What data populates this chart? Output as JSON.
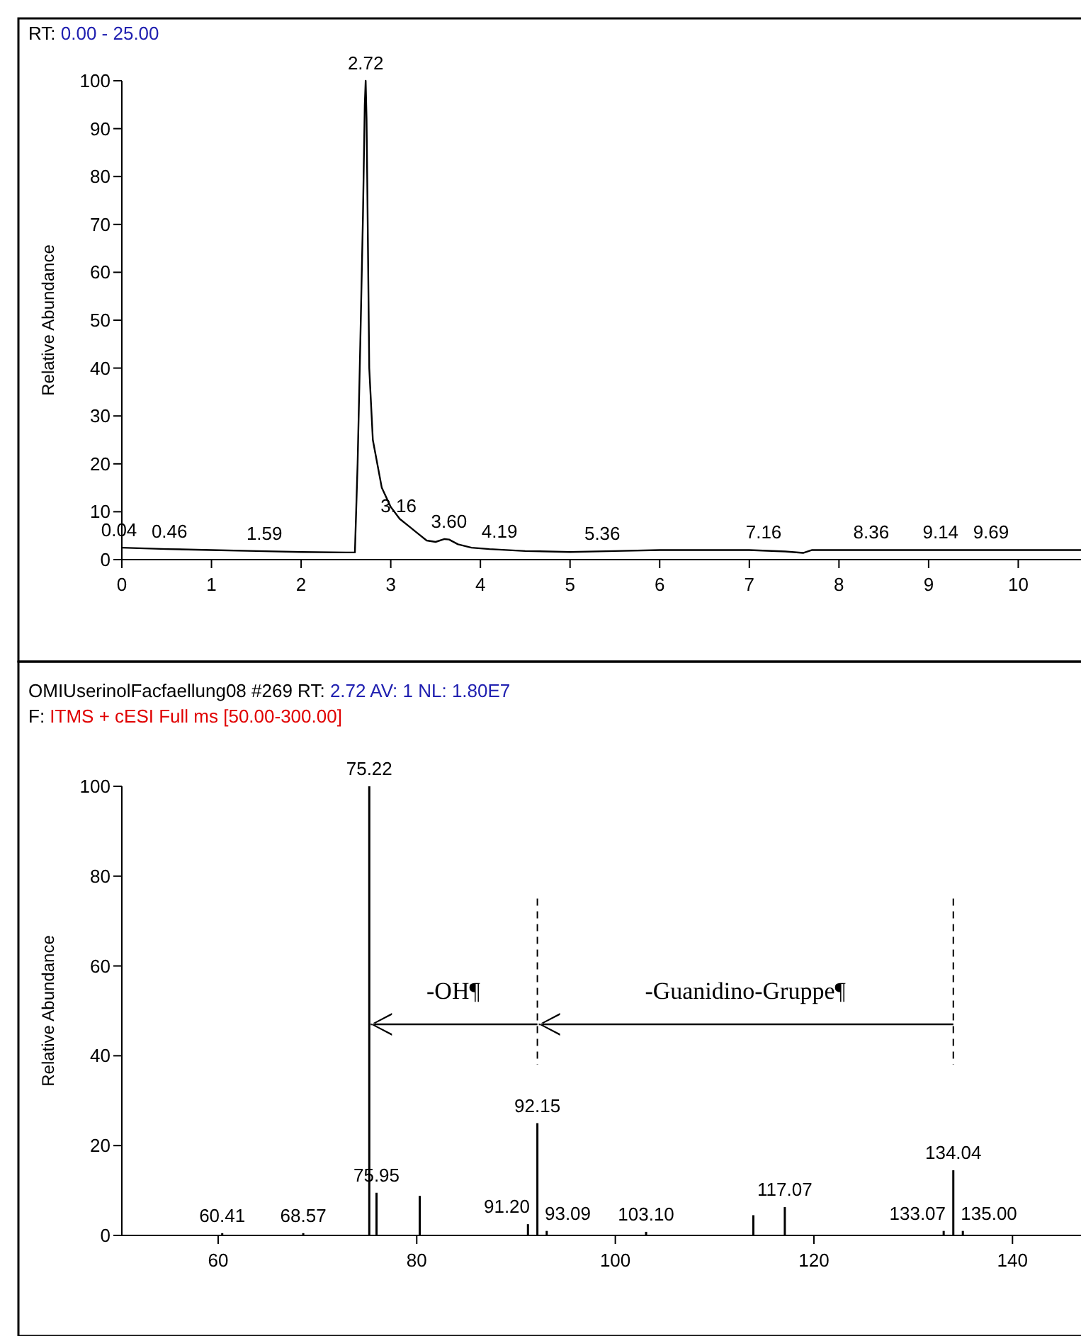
{
  "chart_data": [
    {
      "type": "line",
      "title": "RT: 0.00 - 25.00",
      "ylabel": "Relative Abundance",
      "xlim": [
        0,
        10.7
      ],
      "xticks": [
        0,
        1,
        2,
        3,
        4,
        5,
        6,
        7,
        8,
        9,
        10
      ],
      "ylim": [
        0,
        100
      ],
      "yticks": [
        0,
        10,
        20,
        30,
        40,
        50,
        60,
        70,
        80,
        90,
        100
      ],
      "grid": false,
      "marker": "none",
      "line_style": "solid",
      "series": [
        {
          "color": "#000000",
          "x": [
            0,
            0.5,
            1,
            1.5,
            2,
            2.5,
            2.6,
            2.63,
            2.66,
            2.69,
            2.71,
            2.72,
            2.73,
            2.74,
            2.76,
            2.8,
            2.9,
            3.0,
            3.1,
            3.2,
            3.3,
            3.4,
            3.5,
            3.6,
            3.65,
            3.75,
            3.9,
            4.1,
            4.5,
            5,
            5.5,
            6,
            7,
            7.4,
            7.6,
            7.7,
            8.5,
            9.5,
            10.7
          ],
          "values": [
            2.5,
            2.2,
            2,
            1.8,
            1.6,
            1.5,
            1.5,
            20,
            45,
            72,
            95,
            100,
            92,
            75,
            40,
            25,
            15,
            11,
            8.5,
            7,
            5.5,
            4,
            3.7,
            4.3,
            4.2,
            3.2,
            2.5,
            2.2,
            1.8,
            1.6,
            1.8,
            2,
            2,
            1.7,
            1.4,
            2,
            2,
            2,
            2
          ]
        }
      ],
      "annotations": [
        {
          "text": "0.04",
          "x": 0.04,
          "y": 2.5
        },
        {
          "text": "0.46",
          "x": 0.46,
          "y": 2.2
        },
        {
          "text": "1.59",
          "x": 1.59,
          "y": 1.8
        },
        {
          "text": "2.72",
          "x": 2.72,
          "y": 100
        },
        {
          "text": "3.16",
          "x": 3.16,
          "y": 7.5
        },
        {
          "text": "3.60",
          "x": 3.6,
          "y": 4.3
        },
        {
          "text": "4.19",
          "x": 4.19,
          "y": 2.2
        },
        {
          "text": "5.36",
          "x": 5.36,
          "y": 1.8
        },
        {
          "text": "7.16",
          "x": 7.16,
          "y": 2
        },
        {
          "text": "8.36",
          "x": 8.36,
          "y": 2
        },
        {
          "text": "9.14",
          "x": 9.14,
          "y": 2
        },
        {
          "text": "9.69",
          "x": 9.69,
          "y": 2
        }
      ]
    },
    {
      "type": "bar",
      "title": "OMIUserinolFacfaellung08 #269   RT: 2.72   AV: 1   NL: 1.80E7",
      "subtitle": "F: ITMS + cESI Full ms [50.00-300.00]",
      "ylabel": "Relative Abundance",
      "xlim": [
        50.3,
        146.9
      ],
      "xticks": [
        60,
        80,
        100,
        120,
        140
      ],
      "ylim": [
        0,
        100
      ],
      "yticks": [
        0,
        20,
        40,
        60,
        80,
        100
      ],
      "grid": false,
      "series": [
        {
          "color": "#000000",
          "x": [
            60.41,
            68.57,
            75.22,
            75.95,
            80.3,
            91.2,
            92.15,
            93.09,
            103.1,
            113.9,
            117.07,
            133.07,
            134.04,
            135.0
          ],
          "values": [
            0.5,
            0.5,
            100,
            9.5,
            8.8,
            2.5,
            25,
            1,
            0.8,
            4.5,
            6.3,
            1,
            14.5,
            1
          ]
        }
      ],
      "ref_lines": [
        {
          "axis": "x",
          "value": 92.15,
          "line_style": "dashed"
        },
        {
          "axis": "x",
          "value": 134.04,
          "line_style": "dashed"
        }
      ],
      "annotations": [
        "-OH¶",
        "-Guanidino-Gruppe¶",
        {
          "text": "60.41",
          "x": 60.41,
          "y": 0.5
        },
        {
          "text": "68.57",
          "x": 68.57,
          "y": 0.5
        },
        {
          "text": "75.22",
          "x": 75.22,
          "y": 100
        },
        {
          "text": "75.95",
          "x": 75.95,
          "y": 9.5
        },
        {
          "text": "91.20",
          "x": 91.2,
          "y": 2.5
        },
        {
          "text": "92.15",
          "x": 92.15,
          "y": 25
        },
        {
          "text": "93.09",
          "x": 93.09,
          "y": 1
        },
        {
          "text": "103.10",
          "x": 103.1,
          "y": 0.8
        },
        {
          "text": "117.07",
          "x": 117.07,
          "y": 6.3
        },
        {
          "text": "133.07",
          "x": 133.07,
          "y": 1
        },
        {
          "text": "134.04",
          "x": 134.04,
          "y": 14.5
        },
        {
          "text": "135.00",
          "x": 135.0,
          "y": 1
        }
      ]
    }
  ]
}
